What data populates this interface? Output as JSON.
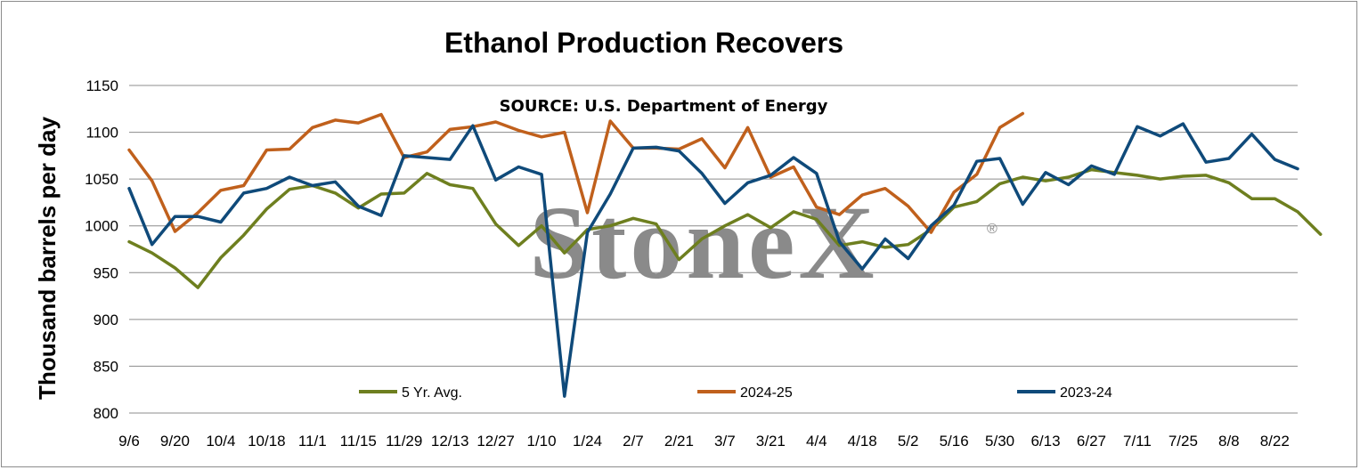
{
  "chart_data": {
    "type": "line",
    "title": "Ethanol Production Recovers",
    "annotation": "SOURCE: U.S. Department of Energy",
    "watermark": "StoneX",
    "watermark_mark": "®",
    "ylabel": "Thousand barrels  per day",
    "xlabel": "",
    "ylim": [
      800,
      1150
    ],
    "yticks": [
      800,
      850,
      900,
      950,
      1000,
      1050,
      1100,
      1150
    ],
    "x_tick_labels": [
      "9/6",
      "9/20",
      "10/4",
      "10/18",
      "11/1",
      "11/15",
      "11/29",
      "12/13",
      "12/27",
      "1/10",
      "1/24",
      "2/7",
      "2/21",
      "3/7",
      "3/21",
      "4/4",
      "4/18",
      "5/2",
      "5/16",
      "5/30",
      "6/13",
      "6/27",
      "7/11",
      "7/25",
      "8/8",
      "8/22"
    ],
    "grid": true,
    "legend_position": "bottom",
    "series": [
      {
        "name": "5 Yr. Avg.",
        "color": "#6e7f1f",
        "values": [
          983,
          971,
          955,
          934,
          966,
          990,
          1018,
          1039,
          1043,
          1035,
          1019,
          1034,
          1035,
          1056,
          1044,
          1040,
          1002,
          979,
          1000,
          971,
          996,
          1000,
          1008,
          1002,
          964,
          986,
          1000,
          1012,
          998,
          1015,
          1007,
          979,
          983,
          977,
          980,
          996,
          1020,
          1026,
          1045,
          1052,
          1048,
          1052,
          1060,
          1057,
          1054,
          1050,
          1053,
          1054,
          1046,
          1029,
          1029,
          1015,
          991
        ]
      },
      {
        "name": "2024-25",
        "color": "#c0601c",
        "values": [
          1081,
          1048,
          994,
          1014,
          1038,
          1043,
          1081,
          1082,
          1105,
          1113,
          1110,
          1119,
          1073,
          1079,
          1103,
          1106,
          1111,
          1102,
          1095,
          1100,
          1014,
          1112,
          1083,
          1083,
          1082,
          1093,
          1062,
          1105,
          1052,
          1063,
          1020,
          1012,
          1033,
          1040,
          1021,
          993,
          1036,
          1055,
          1105,
          1120
        ]
      },
      {
        "name": "2023-24",
        "color": "#0f4a7a",
        "values": [
          1040,
          980,
          1010,
          1010,
          1004,
          1035,
          1040,
          1052,
          1043,
          1047,
          1021,
          1011,
          1075,
          1073,
          1071,
          1107,
          1049,
          1063,
          1055,
          818,
          993,
          1034,
          1083,
          1084,
          1080,
          1056,
          1024,
          1046,
          1054,
          1073,
          1056,
          983,
          954,
          986,
          965,
          1000,
          1022,
          1069,
          1072,
          1023,
          1057,
          1044,
          1064,
          1055,
          1106,
          1096,
          1109,
          1068,
          1072,
          1098,
          1071,
          1061
        ]
      }
    ]
  }
}
